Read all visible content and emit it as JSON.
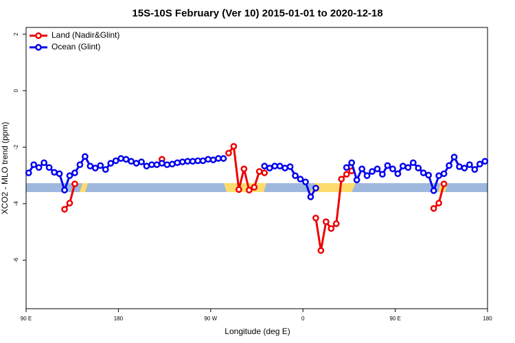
{
  "chart_data": {
    "type": "line",
    "title": "15S-10S February (Ver 10)   2015-01-01 to 2020-12-18",
    "x_label": "Longitude (deg E)",
    "y_label": "XCO2 - MLO trend (ppm)",
    "xlim": [
      90,
      540
    ],
    "xticks": [
      {
        "value": 90,
        "label": "90 E"
      },
      {
        "value": 180,
        "label": "180"
      },
      {
        "value": 270,
        "label": "90 W"
      },
      {
        "value": 360,
        "label": "0"
      },
      {
        "value": 450,
        "label": "90 E"
      },
      {
        "value": 540,
        "label": "180"
      }
    ],
    "ylim": [
      -7.72,
      2.24
    ],
    "yticks": [
      2,
      0,
      -2,
      -4,
      -6
    ],
    "legend": "top-left",
    "x": [
      92.5,
      97.5,
      102.5,
      107.5,
      112.5,
      117.5,
      122.5,
      127.5,
      132.5,
      137.5,
      142.5,
      147.5,
      152.5,
      157.5,
      162.5,
      167.5,
      172.5,
      177.5,
      182.5,
      187.5,
      192.5,
      197.5,
      202.5,
      207.5,
      212.5,
      217.5,
      222.5,
      227.5,
      232.5,
      237.5,
      242.5,
      247.5,
      252.5,
      257.5,
      262.5,
      267.5,
      272.5,
      277.5,
      282.5,
      287.5,
      292.5,
      297.5,
      302.5,
      307.5,
      312.5,
      317.5,
      322.5,
      327.5,
      332.5,
      337.5,
      342.5,
      347.5,
      352.5,
      357.5,
      362.5,
      367.5,
      372.5,
      377.5,
      382.5,
      387.5,
      392.5,
      397.5,
      402.5,
      407.5,
      412.5,
      417.5,
      422.5,
      427.5,
      432.5,
      437.5,
      442.5,
      447.5,
      452.5,
      457.5,
      462.5,
      467.5,
      472.5,
      477.5,
      482.5,
      487.5,
      492.5,
      497.5,
      502.5,
      507.5,
      512.5,
      517.5,
      522.5,
      527.5,
      532.5,
      537.5
    ],
    "series": [
      {
        "name": "Land (Nadir&Glint)",
        "color": "#ee0000",
        "values": [
          null,
          null,
          null,
          null,
          null,
          null,
          null,
          -4.2,
          -3.98,
          -3.3,
          null,
          null,
          null,
          null,
          null,
          null,
          null,
          null,
          null,
          null,
          null,
          null,
          null,
          null,
          null,
          null,
          -2.43,
          null,
          null,
          null,
          null,
          null,
          null,
          null,
          null,
          null,
          null,
          null,
          null,
          -2.21,
          -1.97,
          -3.5,
          -2.77,
          -3.52,
          -3.42,
          -2.86,
          -2.91,
          null,
          null,
          null,
          null,
          null,
          null,
          null,
          null,
          null,
          -4.51,
          -5.66,
          -4.64,
          -4.88,
          -4.71,
          -3.13,
          -2.96,
          -2.84,
          null,
          null,
          null,
          null,
          null,
          null,
          null,
          null,
          null,
          null,
          null,
          null,
          null,
          null,
          null,
          -4.17,
          -3.98,
          -3.3,
          null,
          null,
          null,
          null,
          null,
          null,
          null,
          null
        ]
      },
      {
        "name": "Ocean (Glint)",
        "color": "#0000ee",
        "values": [
          -2.91,
          -2.62,
          -2.72,
          -2.55,
          -2.72,
          -2.89,
          -2.94,
          -3.52,
          -3.01,
          -2.91,
          -2.62,
          -2.33,
          -2.67,
          -2.74,
          -2.65,
          -2.79,
          -2.57,
          -2.48,
          -2.4,
          -2.43,
          -2.5,
          -2.57,
          -2.52,
          -2.67,
          -2.62,
          -2.62,
          -2.57,
          -2.62,
          -2.6,
          -2.55,
          -2.52,
          -2.5,
          -2.5,
          -2.48,
          -2.48,
          -2.43,
          -2.45,
          -2.4,
          -2.4,
          null,
          null,
          null,
          null,
          null,
          null,
          null,
          -2.67,
          -2.74,
          -2.67,
          -2.67,
          -2.74,
          -2.69,
          -3.01,
          -3.13,
          -3.23,
          -3.76,
          -3.45,
          null,
          null,
          null,
          null,
          null,
          -2.72,
          -2.55,
          -3.16,
          -2.77,
          -3.01,
          -2.86,
          -2.77,
          -2.96,
          -2.65,
          -2.77,
          -2.94,
          -2.67,
          -2.72,
          -2.55,
          -2.74,
          -2.91,
          -2.99,
          -3.54,
          -3.01,
          -2.94,
          -2.65,
          -2.35,
          -2.69,
          -2.74,
          -2.62,
          -2.79,
          -2.6,
          -2.5
        ]
      }
    ]
  }
}
